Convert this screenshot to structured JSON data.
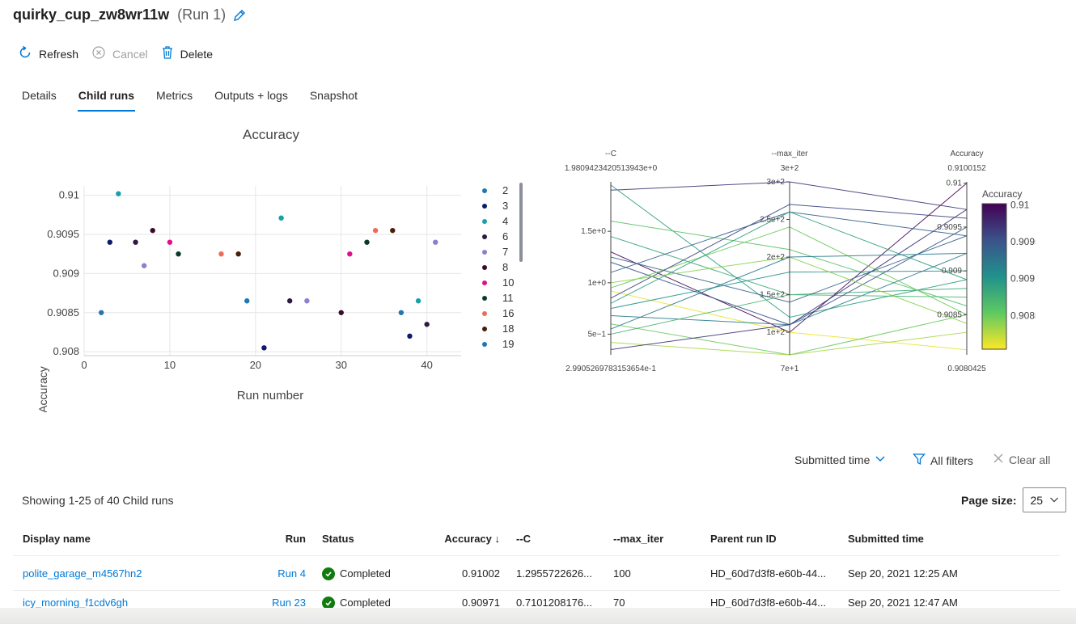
{
  "header": {
    "run_name": "quirky_cup_zw8wr11w",
    "run_number": "(Run 1)"
  },
  "toolbar": {
    "refresh": "Refresh",
    "cancel": "Cancel",
    "delete": "Delete"
  },
  "tabs": [
    {
      "label": "Details",
      "active": false
    },
    {
      "label": "Child runs",
      "active": true
    },
    {
      "label": "Metrics",
      "active": false
    },
    {
      "label": "Outputs + logs",
      "active": false
    },
    {
      "label": "Snapshot",
      "active": false
    }
  ],
  "chart_data": [
    {
      "type": "scatter",
      "title": "Accuracy",
      "xlabel": "Run number",
      "ylabel": "Accuracy",
      "xlim": [
        0,
        44
      ],
      "ylim": [
        0.90795,
        0.91012
      ],
      "x_ticks": [
        "0",
        "10",
        "20",
        "30",
        "40"
      ],
      "y_ticks": [
        "0.908",
        "0.9085",
        "0.909",
        "0.9095",
        "0.91"
      ],
      "grid": true,
      "legend_position": "right",
      "legend": [
        {
          "name": "2",
          "color": "#1f77b4"
        },
        {
          "name": "3",
          "color": "#0d1b6b"
        },
        {
          "name": "4",
          "color": "#17a2a8"
        },
        {
          "name": "6",
          "color": "#2d1a3d"
        },
        {
          "name": "7",
          "color": "#8a80d0"
        },
        {
          "name": "8",
          "color": "#3a0a2a"
        },
        {
          "name": "10",
          "color": "#e0108c"
        },
        {
          "name": "11",
          "color": "#0a3a2a"
        },
        {
          "name": "16",
          "color": "#f06a5a"
        },
        {
          "name": "18",
          "color": "#4a1e0a"
        },
        {
          "name": "19",
          "color": "#1f77b4"
        }
      ],
      "points": [
        {
          "x": 2,
          "y": 0.9085,
          "color": "#1f77b4"
        },
        {
          "x": 3,
          "y": 0.9094,
          "color": "#0d1b6b"
        },
        {
          "x": 4,
          "y": 0.91002,
          "color": "#17a2a8"
        },
        {
          "x": 6,
          "y": 0.9094,
          "color": "#2d1a3d"
        },
        {
          "x": 7,
          "y": 0.9091,
          "color": "#8a80d0"
        },
        {
          "x": 8,
          "y": 0.90955,
          "color": "#3a0a2a"
        },
        {
          "x": 10,
          "y": 0.9094,
          "color": "#e0108c"
        },
        {
          "x": 11,
          "y": 0.90925,
          "color": "#0a3a2a"
        },
        {
          "x": 16,
          "y": 0.90925,
          "color": "#f06a5a"
        },
        {
          "x": 18,
          "y": 0.90925,
          "color": "#4a1e0a"
        },
        {
          "x": 19,
          "y": 0.90865,
          "color": "#1f77b4"
        },
        {
          "x": 21,
          "y": 0.90805,
          "color": "#0d1b6b"
        },
        {
          "x": 23,
          "y": 0.90971,
          "color": "#17a2a8"
        },
        {
          "x": 24,
          "y": 0.90865,
          "color": "#2d1a3d"
        },
        {
          "x": 26,
          "y": 0.90865,
          "color": "#8a80d0"
        },
        {
          "x": 30,
          "y": 0.9085,
          "color": "#3a0a2a"
        },
        {
          "x": 31,
          "y": 0.90925,
          "color": "#e0108c"
        },
        {
          "x": 33,
          "y": 0.9094,
          "color": "#0a3a2a"
        },
        {
          "x": 34,
          "y": 0.90955,
          "color": "#f06a5a"
        },
        {
          "x": 36,
          "y": 0.90955,
          "color": "#4a1e0a"
        },
        {
          "x": 37,
          "y": 0.9085,
          "color": "#1f77b4"
        },
        {
          "x": 38,
          "y": 0.9082,
          "color": "#0d1b6b"
        },
        {
          "x": 39,
          "y": 0.90865,
          "color": "#17a2a8"
        },
        {
          "x": 40,
          "y": 0.90835,
          "color": "#2d1a3d"
        },
        {
          "x": 41,
          "y": 0.9094,
          "color": "#8a80d0"
        }
      ]
    },
    {
      "type": "parallel_coordinates",
      "axes": [
        {
          "name": "--C",
          "max_label": "1.9809423420513943e+0",
          "min_label": "2.9905269783153654e-1",
          "range": [
            0.29905,
            1.98094
          ],
          "ticks": [
            {
              "value": 1.5,
              "label": "1.5e+0"
            },
            {
              "value": 1.0,
              "label": "1e+0"
            },
            {
              "value": 0.5,
              "label": "5e−1"
            }
          ]
        },
        {
          "name": "--max_iter",
          "max_label": "3e+2",
          "min_label": "7e+1",
          "range": [
            70,
            300
          ],
          "ticks": [
            {
              "value": 300,
              "label": "3e+2"
            },
            {
              "value": 250,
              "label": "2.5e+2"
            },
            {
              "value": 200,
              "label": "2e+2"
            },
            {
              "value": 150,
              "label": "1.5e+2"
            },
            {
              "value": 100,
              "label": "1e+2"
            }
          ]
        },
        {
          "name": "Accuracy",
          "max_label": "0.9100152",
          "min_label": "0.9080425",
          "range": [
            0.9080425,
            0.9100152
          ],
          "ticks": [
            {
              "value": 0.91,
              "label": "0.91"
            },
            {
              "value": 0.9095,
              "label": "0.9095"
            },
            {
              "value": 0.909,
              "label": "0.909"
            },
            {
              "value": 0.9085,
              "label": "0.9085"
            }
          ]
        }
      ],
      "colorbar": {
        "title": "Accuracy",
        "ticks": [
          "0.91",
          "0.9095",
          "0.909",
          "0.9085"
        ],
        "colors": [
          "#440154",
          "#3b528b",
          "#21918c",
          "#5ec962",
          "#fde725"
        ]
      },
      "lines": [
        {
          "c": 1.9,
          "iter": 300,
          "acc": 0.9097
        },
        {
          "c": 1.95,
          "iter": 120,
          "acc": 0.9089
        },
        {
          "c": 1.6,
          "iter": 210,
          "acc": 0.9086
        },
        {
          "c": 1.45,
          "iter": 150,
          "acc": 0.9088
        },
        {
          "c": 1.3,
          "iter": 100,
          "acc": 0.91
        },
        {
          "c": 1.25,
          "iter": 140,
          "acc": 0.9094
        },
        {
          "c": 1.1,
          "iter": 260,
          "acc": 0.9094
        },
        {
          "c": 0.95,
          "iter": 240,
          "acc": 0.9085
        },
        {
          "c": 0.92,
          "iter": 100,
          "acc": 0.9081
        },
        {
          "c": 0.85,
          "iter": 270,
          "acc": 0.9096
        },
        {
          "c": 0.75,
          "iter": 180,
          "acc": 0.909
        },
        {
          "c": 0.68,
          "iter": 110,
          "acc": 0.9092
        },
        {
          "c": 0.6,
          "iter": 70,
          "acc": 0.9085
        },
        {
          "c": 0.5,
          "iter": 150,
          "acc": 0.9087
        },
        {
          "c": 0.42,
          "iter": 70,
          "acc": 0.9083
        },
        {
          "c": 0.35,
          "iter": 110,
          "acc": 0.9097
        },
        {
          "c": 1.2,
          "iter": 110,
          "acc": 0.9095
        },
        {
          "c": 0.8,
          "iter": 260,
          "acc": 0.9089
        },
        {
          "c": 1.0,
          "iter": 200,
          "acc": 0.9084
        },
        {
          "c": 0.55,
          "iter": 200,
          "acc": 0.9092
        }
      ]
    }
  ],
  "filters": {
    "sort_label": "Submitted time",
    "all_filters": "All filters",
    "clear_all": "Clear all"
  },
  "list": {
    "showing": "Showing 1-25 of 40 Child runs",
    "page_size_label": "Page size:",
    "page_size": "25"
  },
  "table": {
    "columns": [
      "Display name",
      "Run",
      "Status",
      "Accuracy ↓",
      "--C",
      "--max_iter",
      "Parent run ID",
      "Submitted time"
    ],
    "rows": [
      {
        "name": "polite_garage_m4567hn2",
        "run": "Run 4",
        "status": "Completed",
        "accuracy": "0.91002",
        "c": "1.2955722626...",
        "max_iter": "100",
        "parent": "HD_60d7d3f8-e60b-44...",
        "time": "Sep 20, 2021 12:25 AM"
      },
      {
        "name": "icy_morning_f1cdv6gh",
        "run": "Run 23",
        "status": "Completed",
        "accuracy": "0.90971",
        "c": "0.7101208176...",
        "max_iter": "70",
        "parent": "HD_60d7d3f8-e60b-44...",
        "time": "Sep 20, 2021 12:47 AM"
      }
    ]
  }
}
